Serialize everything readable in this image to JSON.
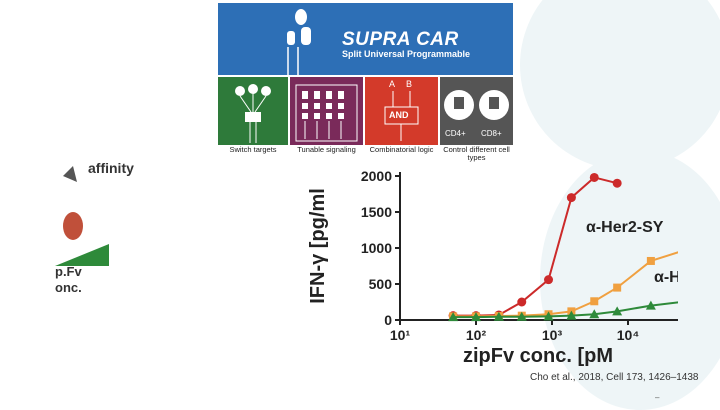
{
  "banner": {
    "title": "SUPRA CAR",
    "subtitle": "Split Universal Programmable",
    "colors": {
      "blue": "#2d6fb6"
    }
  },
  "panels": [
    {
      "label": "Switch targets",
      "color": "#2e7a3a"
    },
    {
      "label": "Tunable signaling",
      "color": "#7a2a5a"
    },
    {
      "label": "Combinatorial logic",
      "color": "#d33a2a",
      "inner": {
        "a": "A",
        "b": "B",
        "gate": "AND"
      }
    },
    {
      "label": "Control different cell types",
      "color": "#555555",
      "inner": {
        "cd4": "CD4+",
        "cd8": "CD8+"
      }
    }
  ],
  "left_fragment": {
    "text1": "affinity",
    "text2": "p.Fv",
    "text3": "onc."
  },
  "chart_data": {
    "type": "line",
    "ylabel": "IFN-γ [pg/ml",
    "xlabel": "zipFv conc. [pM",
    "xscale": "log",
    "xlim": [
      10,
      100000
    ],
    "ylim": [
      0,
      2000
    ],
    "yticks": [
      "0",
      "500",
      "1000",
      "1500",
      "2000"
    ],
    "xticks": [
      "10¹",
      "10²",
      "10³",
      "10⁴"
    ],
    "series": [
      {
        "name": "α-Her2-SY",
        "color": "#cc2a2a",
        "x": [
          50,
          100,
          200,
          400,
          900,
          1800,
          3600,
          7200
        ],
        "y": [
          60,
          60,
          70,
          250,
          560,
          1700,
          1980,
          1900
        ]
      },
      {
        "name": "α-H",
        "color": "#f0a040",
        "x": [
          50,
          100,
          200,
          400,
          900,
          1800,
          3600,
          7200,
          20000,
          60000
        ],
        "y": [
          50,
          50,
          55,
          60,
          80,
          120,
          260,
          450,
          820,
          980
        ]
      },
      {
        "name": "",
        "color": "#2e8a3a",
        "x": [
          50,
          100,
          200,
          400,
          900,
          1800,
          3600,
          7200,
          20000,
          60000
        ],
        "y": [
          40,
          40,
          45,
          45,
          50,
          60,
          80,
          120,
          200,
          260
        ]
      }
    ]
  },
  "citation": "Cho et al., 2018, Cell 173, 1426–1438",
  "footer_dash": "–"
}
